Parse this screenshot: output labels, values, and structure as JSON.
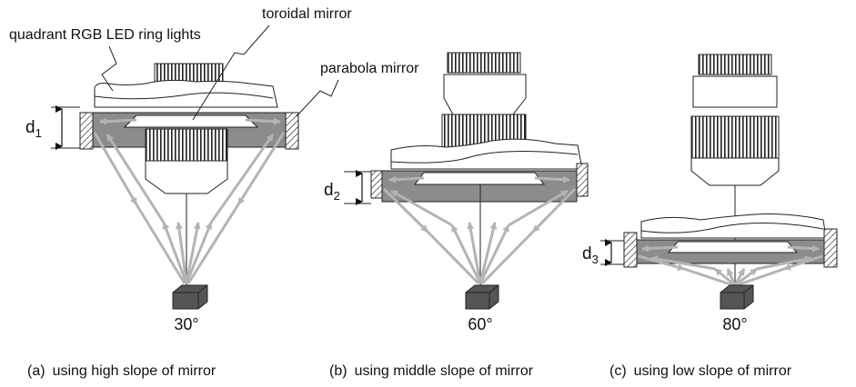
{
  "labels": {
    "quadrant_lights": "quadrant RGB LED ring lights",
    "toroidal_mirror": "toroidal mirror",
    "parabola_mirror": "parabola mirror"
  },
  "panels": [
    {
      "id": "a",
      "d_main": "d",
      "d_sub": "1",
      "angle": "30°",
      "caption_tag": "(a)",
      "caption": "using high slope of mirror"
    },
    {
      "id": "b",
      "d_main": "d",
      "d_sub": "2",
      "angle": "60°",
      "caption_tag": "(b)",
      "caption": "using middle slope of mirror"
    },
    {
      "id": "c",
      "d_main": "d",
      "d_sub": "3",
      "angle": "80°",
      "caption_tag": "(c)",
      "caption": "using low slope of mirror"
    }
  ],
  "colors": {
    "mirror_fill": "#8c8c8c",
    "ray": "#b4b4b4",
    "sample": "#555555",
    "line": "#222222"
  }
}
